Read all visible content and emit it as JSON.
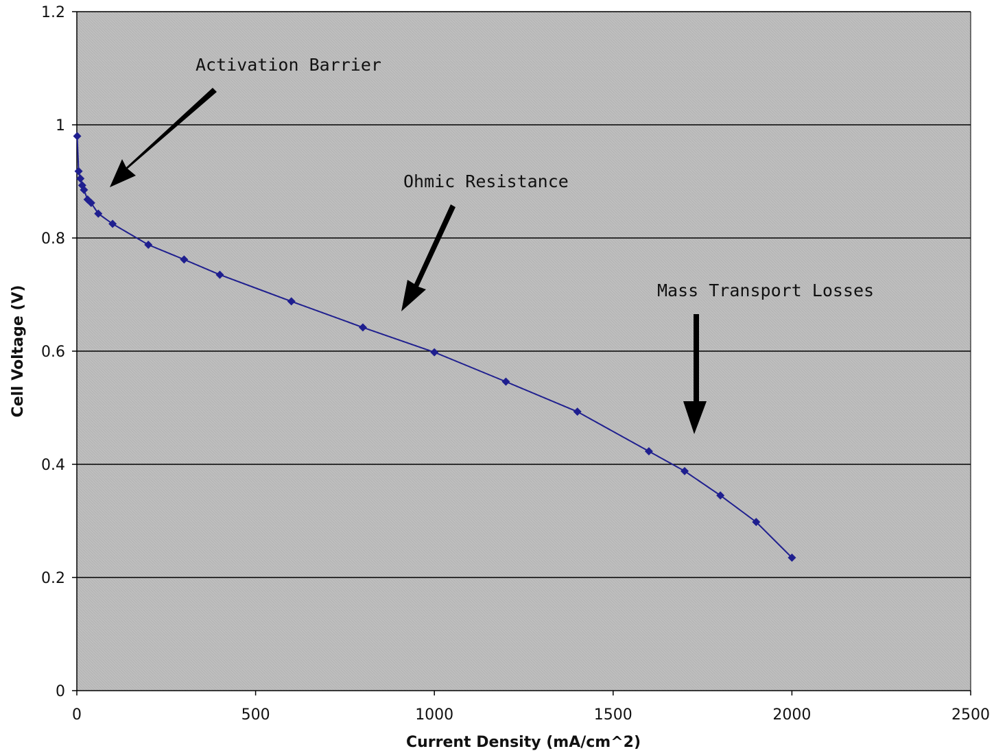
{
  "chart_data": {
    "type": "line",
    "xlabel": "Current Density (mA/cm^2)",
    "ylabel": "Cell Voltage (V)",
    "xlim": [
      0,
      2500
    ],
    "ylim": [
      0,
      1.2
    ],
    "x_ticks": [
      "0",
      "500",
      "1000",
      "1500",
      "2000",
      "2500"
    ],
    "y_ticks": [
      "0",
      "0.2",
      "0.4",
      "0.6",
      "0.8",
      "1",
      "1.2"
    ],
    "grid": "horizontal",
    "legend": "none",
    "colors": {
      "plot_background": "#bfbfbf",
      "series": "#1f1f8f",
      "gridline": "#000000"
    },
    "series": [
      {
        "x": [
          1,
          5,
          10,
          15,
          20,
          30,
          40,
          60,
          100,
          200,
          300,
          400,
          600,
          800,
          1000,
          1200,
          1400,
          1600,
          1700,
          1800,
          1900,
          2000
        ],
        "y": [
          0.98,
          0.918,
          0.905,
          0.893,
          0.885,
          0.868,
          0.862,
          0.843,
          0.825,
          0.788,
          0.762,
          0.735,
          0.688,
          0.642,
          0.598,
          0.546,
          0.493,
          0.423,
          0.388,
          0.345,
          0.298,
          0.235
        ]
      }
    ],
    "annotations": [
      {
        "text": "Activation Barrier",
        "points_to": {
          "x": 95,
          "y": 0.89
        }
      },
      {
        "text": "Ohmic Resistance",
        "points_to": {
          "x": 910,
          "y": 0.67
        }
      },
      {
        "text": "Mass Transport Losses",
        "points_to": {
          "x": 1730,
          "y": 0.46
        }
      }
    ]
  }
}
